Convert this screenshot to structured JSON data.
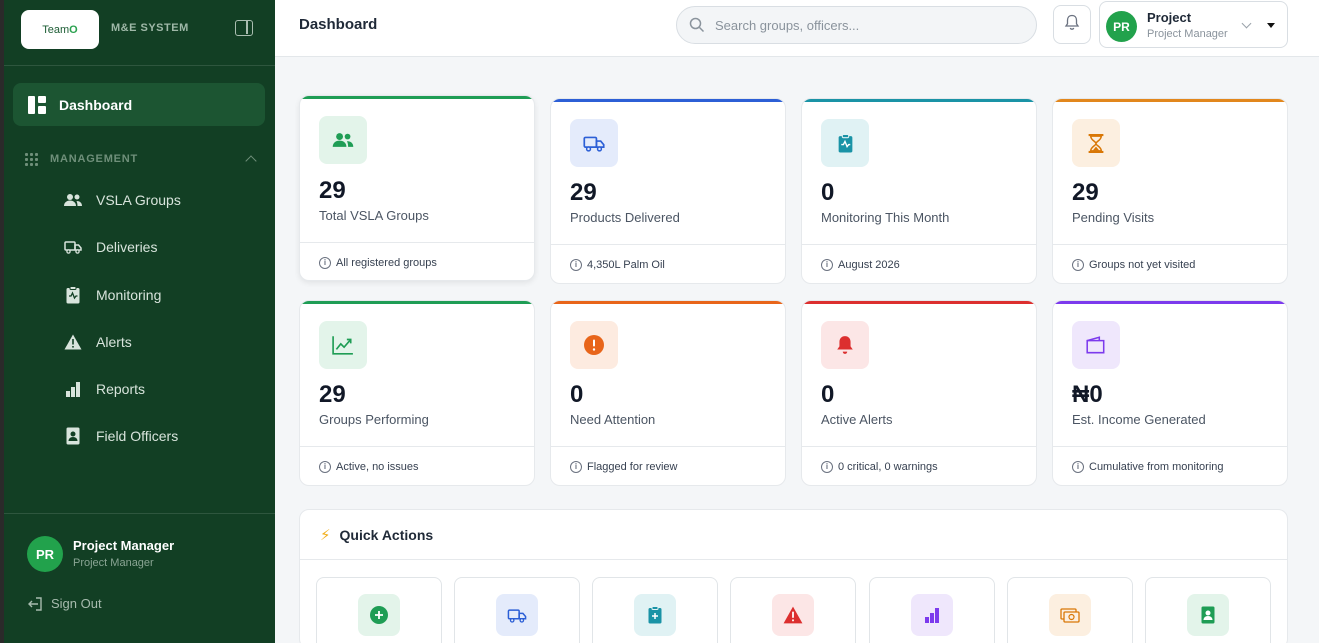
{
  "sidebar": {
    "brand_logo_text": "Team",
    "brand_logo_o": "O",
    "brand_sub": "M&E SYSTEM",
    "active_item": "Dashboard",
    "section_label": "MANAGEMENT",
    "items": [
      {
        "label": "VSLA Groups",
        "icon": "users-icon"
      },
      {
        "label": "Deliveries",
        "icon": "truck-icon"
      },
      {
        "label": "Monitoring",
        "icon": "clipboard-icon"
      },
      {
        "label": "Alerts",
        "icon": "warning-icon"
      },
      {
        "label": "Reports",
        "icon": "bar-chart-icon"
      },
      {
        "label": "Field Officers",
        "icon": "id-badge-icon"
      }
    ],
    "user_initials": "PR",
    "user_name": "Project Manager",
    "user_role": "Project Manager",
    "signout_label": "Sign Out"
  },
  "header": {
    "title": "Dashboard",
    "search_placeholder": "Search groups, officers...",
    "user_initials": "PR",
    "user_name": "Project",
    "user_role": "Project Manager"
  },
  "cards": [
    {
      "value": "29",
      "label": "Total VSLA Groups",
      "footer": "All registered groups",
      "accent": "#1f9d55",
      "icon": "users-icon"
    },
    {
      "value": "29",
      "label": "Products Delivered",
      "footer": "4,350L Palm Oil",
      "accent": "#2c5fd6",
      "icon": "truck-icon"
    },
    {
      "value": "0",
      "label": "Monitoring This Month",
      "footer": "August 2026",
      "accent": "#1a93a6",
      "icon": "clipboard-icon"
    },
    {
      "value": "29",
      "label": "Pending Visits",
      "footer": "Groups not yet visited",
      "accent": "#e2871d",
      "icon": "hourglass-icon"
    },
    {
      "value": "29",
      "label": "Groups Performing",
      "footer": "Active, no issues",
      "accent": "#1f9d55",
      "icon": "trending-up-icon"
    },
    {
      "value": "0",
      "label": "Need Attention",
      "footer": "Flagged for review",
      "accent": "#e8651a",
      "icon": "alert-circle-icon"
    },
    {
      "value": "0",
      "label": "Active Alerts",
      "footer": "0 critical, 0 warnings",
      "accent": "#dc2f2f",
      "icon": "bell-icon"
    },
    {
      "value": "₦0",
      "label": "Est. Income Generated",
      "footer": "Cumulative from monitoring",
      "accent": "#7c3aed",
      "icon": "wallet-icon"
    }
  ],
  "quick_actions": {
    "title": "Quick Actions",
    "tiles": [
      "plus-circle-icon",
      "truck-icon",
      "clipboard-plus-icon",
      "warning-icon",
      "bar-chart-icon",
      "money-icon",
      "id-badge-icon"
    ]
  }
}
